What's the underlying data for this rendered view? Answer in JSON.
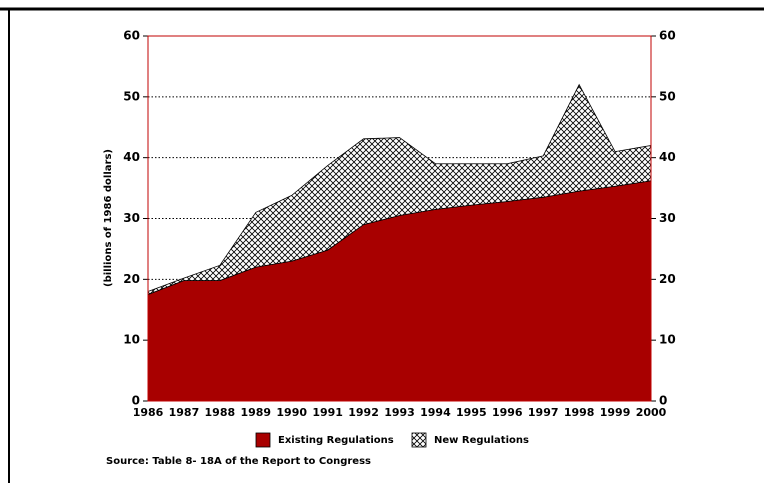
{
  "chart_data": {
    "type": "stacked_area",
    "y_label": "(billions of 1986 dollars)",
    "source": "Source: Table 8- 18A of the Report to Congress",
    "categories": [
      "1986",
      "1987",
      "1988",
      "1989",
      "1990",
      "1991",
      "1992",
      "1993",
      "1994",
      "1995",
      "1996",
      "1997",
      "1998",
      "1999",
      "2000"
    ],
    "series": [
      {
        "name": "Existing Regulations",
        "color": "#a80000",
        "values": [
          17.5,
          19.8,
          19.8,
          22,
          23,
          24.8,
          29,
          30.5,
          31.5,
          32.2,
          32.8,
          33.5,
          34.5,
          35.3,
          36.2
        ]
      },
      {
        "name": "New Regulations",
        "color": "#000000",
        "pattern": "crosshatch",
        "values": [
          0.5,
          0.4,
          2.5,
          9,
          10.8,
          13.9,
          14.1,
          12.8,
          7.5,
          6.8,
          6.2,
          6.8,
          17.5,
          5.7,
          5.8
        ]
      }
    ],
    "ylim": [
      0,
      60
    ],
    "yticks": [
      0,
      10,
      20,
      30,
      40,
      50,
      60
    ],
    "y2lim": [
      0,
      60
    ],
    "y2ticks": [
      0,
      10,
      20,
      30,
      40,
      50,
      60
    ],
    "grid": true,
    "legend": "bottom"
  }
}
